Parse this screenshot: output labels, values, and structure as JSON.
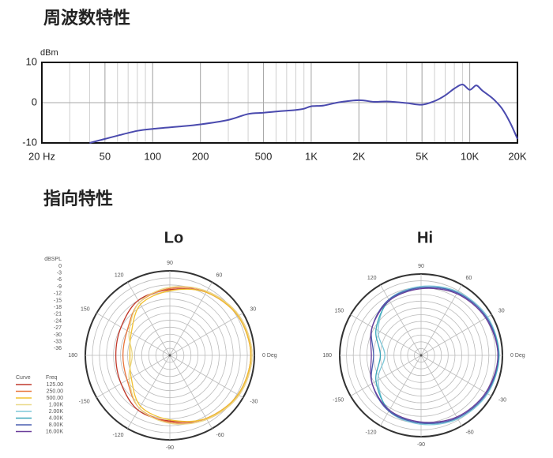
{
  "headings": [
    "周波数特性",
    "指向特性"
  ],
  "chart_data": [
    {
      "type": "line",
      "ylabel": "dBm",
      "log_x": true,
      "minor_grid": true,
      "grid": true,
      "xlim": [
        20,
        20000
      ],
      "xticks": [
        {
          "value": 20,
          "label": "20 Hz"
        },
        50,
        100,
        200,
        500,
        {
          "value": 1000,
          "label": "1K"
        },
        {
          "value": 2000,
          "label": "2K"
        },
        {
          "value": 5000,
          "label": "5K"
        },
        {
          "value": 10000,
          "label": "10K"
        },
        {
          "value": 20000,
          "label": "20K"
        }
      ],
      "ylim": [
        -10,
        10
      ],
      "yticks": [
        10,
        0,
        -10
      ],
      "color": "#4a4aae",
      "x": [
        40,
        50,
        60,
        80,
        100,
        150,
        200,
        300,
        400,
        500,
        600,
        800,
        900,
        1000,
        1200,
        1500,
        2000,
        2500,
        3000,
        4000,
        5000,
        6000,
        7000,
        8000,
        9000,
        10000,
        11000,
        12000,
        14000,
        16000,
        18000,
        20000
      ],
      "values": [
        -10,
        -9,
        -8.2,
        -7,
        -6.5,
        -5.9,
        -5.4,
        -4.3,
        -2.8,
        -2.5,
        -2.2,
        -1.8,
        -1.5,
        -0.9,
        -0.7,
        0.1,
        0.6,
        0.2,
        0.3,
        -0.1,
        -0.5,
        0.4,
        1.8,
        3.5,
        4.5,
        3.2,
        4.3,
        3,
        1,
        -1.5,
        -5,
        -9
      ]
    },
    {
      "type": "polar",
      "title": "Lo",
      "rlabel": "dBSPL",
      "rtick_labels": true,
      "rlim": [
        -36,
        0
      ],
      "rticks": [
        0,
        -3,
        -6,
        -9,
        -12,
        -15,
        -18,
        -21,
        -24,
        -27,
        -30,
        -33,
        -36
      ],
      "thetaticks": [
        {
          "value": 0,
          "label": "0 Deg"
        },
        30,
        60,
        90,
        120,
        150,
        180,
        {
          "value": 210,
          "label": "-150"
        },
        {
          "value": 240,
          "label": "-120"
        },
        {
          "value": 270,
          "label": "-90"
        },
        {
          "value": 300,
          "label": "-60"
        },
        {
          "value": 330,
          "label": "-30"
        }
      ],
      "legend_headers": [
        "Curve",
        "Freq"
      ],
      "theta": [
        0,
        30,
        60,
        90,
        120,
        150,
        180,
        210,
        240,
        270,
        300,
        330
      ],
      "series": [
        {
          "name": "125.00",
          "color": "#c0392b",
          "values": [
            -1.5,
            -2.5,
            -5,
            -8,
            -9,
            -12,
            -13,
            -12,
            -9,
            -8,
            -5,
            -2.5
          ]
        },
        {
          "name": "250.00",
          "color": "#e8743b",
          "values": [
            -1,
            -2,
            -4.5,
            -7.5,
            -10,
            -15,
            -16,
            -15,
            -10,
            -7.5,
            -4.5,
            -2
          ]
        },
        {
          "name": "500.00",
          "color": "#f2c12e",
          "values": [
            -1.5,
            -2.5,
            -5,
            -8.5,
            -11,
            -17,
            -19,
            -17,
            -11,
            -8.5,
            -5,
            -2.5
          ]
        },
        {
          "name": "1.00K",
          "color": "#ead98a",
          "values": [
            -1,
            -2,
            -4.5,
            -7,
            -10,
            -16,
            -20,
            -16,
            -10,
            -7,
            -4.5,
            -2
          ]
        }
      ]
    },
    {
      "type": "polar",
      "title": "Hi",
      "rtick_labels": false,
      "rlim": [
        -36,
        0
      ],
      "rticks": [
        0,
        -3,
        -6,
        -9,
        -12,
        -15,
        -18,
        -21,
        -24,
        -27,
        -30,
        -33,
        -36
      ],
      "thetaticks": [
        {
          "value": 0,
          "label": "0 Deg"
        },
        30,
        60,
        90,
        120,
        150,
        180,
        {
          "value": 210,
          "label": "-150"
        },
        {
          "value": 240,
          "label": "-120"
        },
        {
          "value": 270,
          "label": "-90"
        },
        {
          "value": 300,
          "label": "-60"
        },
        {
          "value": 330,
          "label": "-30"
        }
      ],
      "theta": [
        0,
        30,
        60,
        90,
        120,
        150,
        180,
        210,
        240,
        270,
        300,
        330
      ],
      "series": [
        {
          "name": "2.00K",
          "color": "#7fc8d8",
          "values": [
            -1.5,
            -2,
            -3.5,
            -5.5,
            -7.5,
            -14,
            -20,
            -14,
            -7.5,
            -5.5,
            -3.5,
            -2
          ]
        },
        {
          "name": "4.00K",
          "color": "#3aa6b9",
          "values": [
            -1.5,
            -2.5,
            -4,
            -6,
            -8,
            -13,
            -18,
            -13,
            -8,
            -6,
            -4,
            -2.5
          ]
        },
        {
          "name": "8.00K",
          "color": "#4a5fb0",
          "values": [
            -2,
            -2.5,
            -4,
            -6,
            -7.5,
            -11,
            -15,
            -11,
            -7.5,
            -6,
            -4,
            -2.5
          ]
        },
        {
          "name": "16.00K",
          "color": "#6a3d9a",
          "values": [
            -2,
            -3,
            -4.5,
            -6.5,
            -8,
            -11,
            -14,
            -11,
            -8,
            -6.5,
            -4.5,
            -3
          ]
        }
      ]
    }
  ]
}
